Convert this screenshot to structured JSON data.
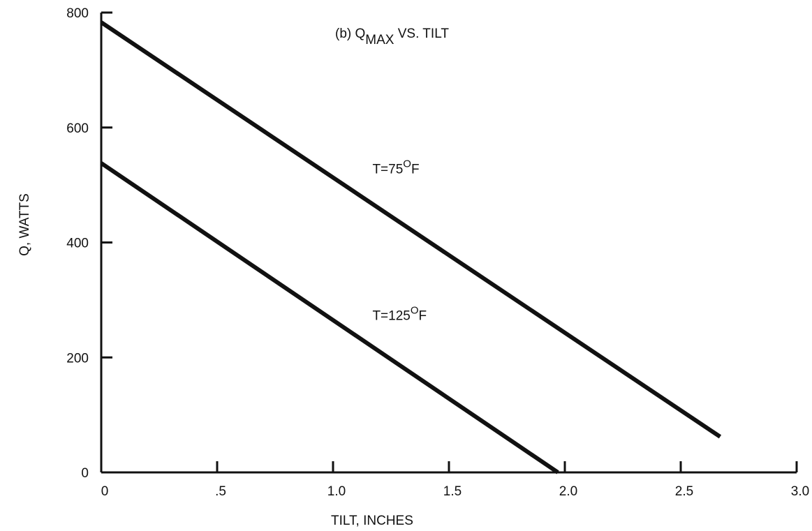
{
  "chart_data": {
    "type": "line",
    "title": "(b) Q",
    "title_subscript": "MAX",
    "title_rest": " VS. TILT",
    "xlabel": "TILT, INCHES",
    "ylabel": "Q, WATTS",
    "xlim": [
      0,
      3.0
    ],
    "ylim": [
      0,
      800
    ],
    "x_ticks": [
      0,
      0.5,
      1.0,
      1.5,
      2.0,
      2.5,
      3.0
    ],
    "x_tick_labels": [
      "0",
      ".5",
      "1.0",
      "1.5",
      "2.0",
      "2.5",
      "3.0"
    ],
    "y_ticks": [
      0,
      200,
      400,
      600,
      800
    ],
    "y_tick_labels": [
      "0",
      "200",
      "400",
      "600",
      "800"
    ],
    "grid": false,
    "legend": "none",
    "line_color": "#111111",
    "series": [
      {
        "name": "T=75°F",
        "label_prefix": "T=75",
        "label_superscript": "O",
        "label_suffix": "F",
        "label_at": {
          "x": 1.17,
          "y": 520
        },
        "x": [
          0,
          2.67
        ],
        "y": [
          783,
          62
        ]
      },
      {
        "name": "T=125°F",
        "label_prefix": "T=125",
        "label_superscript": "O",
        "label_suffix": "F",
        "label_at": {
          "x": 1.17,
          "y": 265
        },
        "x": [
          0,
          1.97
        ],
        "y": [
          538,
          0
        ]
      }
    ]
  }
}
